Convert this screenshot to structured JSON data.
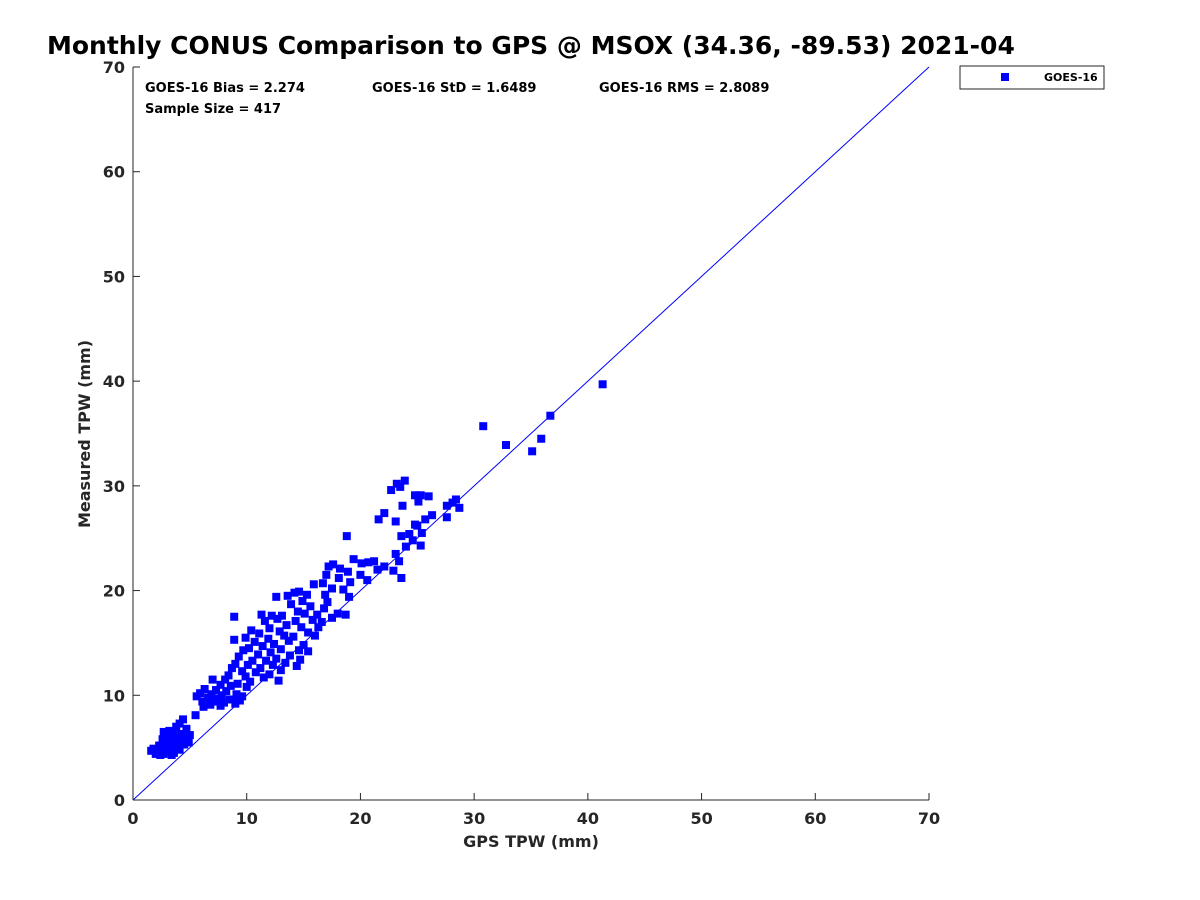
{
  "chart_data": {
    "type": "scatter",
    "title": "Monthly CONUS Comparison to GPS @ MSOX (34.36, -89.53) 2021-04",
    "xlabel": "GPS TPW (mm)",
    "ylabel": "Measured TPW (mm)",
    "xlim": [
      0,
      70
    ],
    "ylim": [
      0,
      70
    ],
    "xticks": [
      "0",
      "10",
      "20",
      "30",
      "40",
      "50",
      "60",
      "70"
    ],
    "yticks": [
      "0",
      "10",
      "20",
      "30",
      "40",
      "50",
      "60",
      "70"
    ],
    "grid": false,
    "legend_position": "top-right, outside plot",
    "reference_line": {
      "from": [
        0,
        0
      ],
      "to": [
        70,
        70
      ],
      "color": "#0000ff"
    },
    "stats": {
      "bias": "GOES-16 Bias = 2.274",
      "std": "GOES-16 StD = 1.6489",
      "rms": "GOES-16 RMS = 2.8089",
      "sample_size": "Sample Size = 417"
    },
    "series": [
      {
        "name": "GOES-16",
        "color": "#0000ff",
        "marker": "square",
        "points": [
          [
            41.3,
            39.7
          ],
          [
            36.7,
            36.7
          ],
          [
            30.8,
            35.7
          ],
          [
            32.8,
            33.9
          ],
          [
            35.9,
            34.5
          ],
          [
            35.1,
            33.3
          ],
          [
            23.9,
            30.5
          ],
          [
            23.2,
            30.2
          ],
          [
            22.7,
            29.6
          ],
          [
            23.5,
            29.9
          ],
          [
            24.8,
            29.1
          ],
          [
            25.3,
            29.1
          ],
          [
            26.0,
            29.0
          ],
          [
            28.4,
            28.7
          ],
          [
            28.1,
            28.4
          ],
          [
            27.6,
            28.1
          ],
          [
            28.7,
            27.9
          ],
          [
            25.1,
            28.5
          ],
          [
            23.7,
            28.1
          ],
          [
            22.1,
            27.4
          ],
          [
            21.6,
            26.8
          ],
          [
            23.1,
            26.6
          ],
          [
            25.7,
            26.8
          ],
          [
            26.3,
            27.2
          ],
          [
            27.6,
            27.0
          ],
          [
            24.8,
            26.3
          ],
          [
            24.3,
            25.4
          ],
          [
            25.4,
            25.5
          ],
          [
            23.6,
            25.2
          ],
          [
            24.0,
            24.2
          ],
          [
            25.3,
            24.3
          ],
          [
            24.6,
            24.8
          ],
          [
            25.0,
            26.2
          ],
          [
            23.1,
            23.5
          ],
          [
            23.4,
            22.8
          ],
          [
            22.9,
            21.9
          ],
          [
            23.6,
            21.2
          ],
          [
            18.8,
            25.2
          ],
          [
            19.4,
            23.0
          ],
          [
            20.1,
            22.6
          ],
          [
            20.7,
            22.7
          ],
          [
            21.2,
            22.8
          ],
          [
            21.5,
            22.0
          ],
          [
            22.1,
            22.3
          ],
          [
            20.0,
            21.5
          ],
          [
            20.6,
            21.0
          ],
          [
            19.0,
            19.4
          ],
          [
            18.7,
            17.7
          ],
          [
            18.0,
            17.8
          ],
          [
            17.5,
            17.4
          ],
          [
            17.2,
            22.3
          ],
          [
            17.6,
            22.5
          ],
          [
            18.2,
            22.1
          ],
          [
            18.9,
            21.8
          ],
          [
            17.0,
            21.5
          ],
          [
            18.1,
            21.2
          ],
          [
            19.1,
            20.8
          ],
          [
            16.7,
            20.7
          ],
          [
            15.9,
            20.6
          ],
          [
            17.5,
            20.2
          ],
          [
            18.5,
            20.1
          ],
          [
            16.9,
            19.6
          ],
          [
            17.1,
            18.9
          ],
          [
            16.8,
            18.3
          ],
          [
            14.2,
            19.8
          ],
          [
            14.6,
            19.9
          ],
          [
            15.3,
            19.6
          ],
          [
            13.6,
            19.5
          ],
          [
            12.6,
            19.4
          ],
          [
            14.9,
            19.0
          ],
          [
            13.9,
            18.7
          ],
          [
            15.6,
            18.5
          ],
          [
            14.5,
            18.0
          ],
          [
            15.1,
            17.8
          ],
          [
            16.2,
            17.7
          ],
          [
            13.1,
            17.6
          ],
          [
            11.3,
            17.7
          ],
          [
            12.2,
            17.6
          ],
          [
            8.9,
            17.5
          ],
          [
            12.7,
            17.3
          ],
          [
            14.3,
            17.1
          ],
          [
            15.8,
            17.2
          ],
          [
            16.6,
            17.0
          ],
          [
            11.6,
            17.1
          ],
          [
            13.5,
            16.7
          ],
          [
            12.0,
            16.4
          ],
          [
            14.8,
            16.5
          ],
          [
            16.3,
            16.5
          ],
          [
            10.4,
            16.2
          ],
          [
            12.9,
            16.1
          ],
          [
            15.4,
            16.0
          ],
          [
            11.1,
            15.9
          ],
          [
            13.3,
            15.7
          ],
          [
            14.1,
            15.6
          ],
          [
            16.0,
            15.7
          ],
          [
            9.9,
            15.5
          ],
          [
            11.9,
            15.4
          ],
          [
            8.9,
            15.3
          ],
          [
            10.7,
            15.1
          ],
          [
            13.7,
            15.2
          ],
          [
            12.4,
            14.9
          ],
          [
            15.0,
            14.8
          ],
          [
            11.4,
            14.7
          ],
          [
            10.2,
            14.5
          ],
          [
            13.0,
            14.4
          ],
          [
            14.6,
            14.3
          ],
          [
            9.7,
            14.3
          ],
          [
            12.1,
            14.1
          ],
          [
            15.4,
            14.2
          ],
          [
            11.0,
            13.9
          ],
          [
            13.8,
            13.8
          ],
          [
            9.3,
            13.7
          ],
          [
            12.6,
            13.5
          ],
          [
            14.7,
            13.4
          ],
          [
            10.5,
            13.3
          ],
          [
            11.7,
            13.3
          ],
          [
            13.4,
            13.1
          ],
          [
            9.0,
            13.0
          ],
          [
            10.1,
            12.9
          ],
          [
            12.3,
            12.9
          ],
          [
            14.4,
            12.8
          ],
          [
            8.7,
            12.6
          ],
          [
            11.2,
            12.6
          ],
          [
            13.0,
            12.4
          ],
          [
            9.6,
            12.3
          ],
          [
            10.8,
            12.2
          ],
          [
            12.0,
            12.0
          ],
          [
            8.4,
            11.9
          ],
          [
            9.9,
            11.8
          ],
          [
            11.5,
            11.7
          ],
          [
            12.8,
            11.4
          ],
          [
            8.1,
            11.5
          ],
          [
            10.3,
            11.3
          ],
          [
            9.2,
            11.1
          ],
          [
            7.0,
            11.5
          ],
          [
            7.7,
            11.0
          ],
          [
            8.6,
            10.9
          ],
          [
            10.0,
            10.8
          ],
          [
            6.3,
            10.6
          ],
          [
            7.3,
            10.5
          ],
          [
            8.2,
            10.4
          ],
          [
            5.9,
            10.2
          ],
          [
            6.9,
            10.1
          ],
          [
            7.8,
            10.0
          ],
          [
            9.1,
            10.1
          ],
          [
            5.6,
            9.9
          ],
          [
            6.6,
            9.8
          ],
          [
            7.5,
            9.7
          ],
          [
            8.5,
            9.6
          ],
          [
            9.4,
            9.5
          ],
          [
            6.1,
            9.4
          ],
          [
            7.2,
            9.4
          ],
          [
            8.0,
            9.3
          ],
          [
            9.0,
            9.2
          ],
          [
            6.8,
            9.1
          ],
          [
            7.7,
            9.0
          ],
          [
            8.8,
            9.6
          ],
          [
            6.2,
            8.9
          ],
          [
            9.6,
            9.9
          ],
          [
            5.5,
            8.1
          ],
          [
            4.4,
            7.7
          ],
          [
            4.1,
            7.3
          ],
          [
            3.8,
            7.0
          ],
          [
            4.7,
            6.8
          ],
          [
            3.2,
            6.6
          ],
          [
            2.7,
            6.5
          ],
          [
            3.6,
            6.4
          ],
          [
            4.3,
            6.3
          ],
          [
            5.0,
            6.2
          ],
          [
            3.0,
            6.1
          ],
          [
            3.9,
            6.0
          ],
          [
            4.8,
            5.9
          ],
          [
            2.6,
            5.8
          ],
          [
            3.4,
            5.7
          ],
          [
            4.2,
            5.6
          ],
          [
            4.9,
            5.5
          ],
          [
            2.9,
            5.4
          ],
          [
            3.7,
            5.4
          ],
          [
            4.5,
            5.3
          ],
          [
            2.3,
            5.2
          ],
          [
            3.1,
            5.1
          ],
          [
            4.0,
            5.0
          ],
          [
            1.8,
            4.9
          ],
          [
            2.5,
            4.9
          ],
          [
            3.3,
            4.8
          ],
          [
            4.1,
            4.8
          ],
          [
            1.6,
            4.7
          ],
          [
            2.2,
            4.6
          ],
          [
            2.9,
            4.6
          ],
          [
            3.6,
            4.5
          ],
          [
            2.0,
            4.4
          ],
          [
            2.7,
            4.4
          ],
          [
            3.4,
            4.3
          ],
          [
            2.4,
            4.3
          ]
        ]
      }
    ]
  }
}
